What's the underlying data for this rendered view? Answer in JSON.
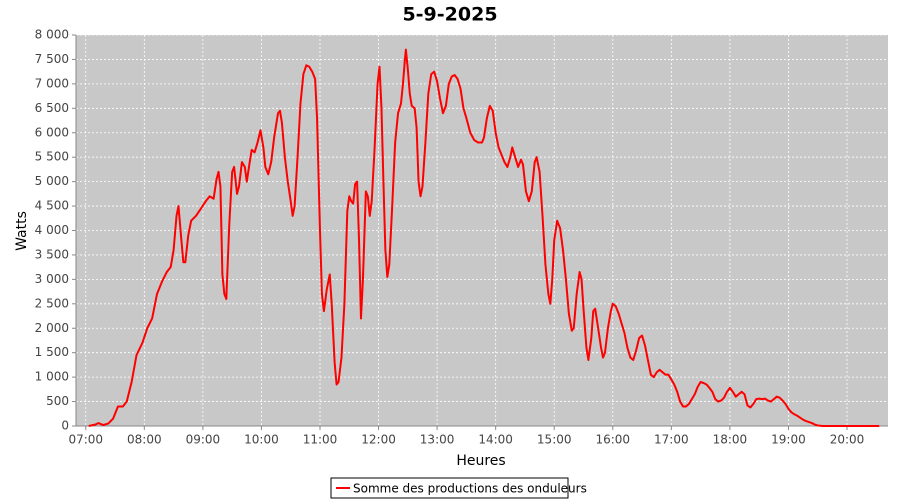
{
  "chart_data": {
    "type": "line",
    "title": "5-9-2025",
    "x_label": "Heures",
    "y_label": "Watts",
    "x": [
      "07:03",
      "07:10",
      "07:13",
      "07:18",
      "07:23",
      "07:28",
      "07:33",
      "07:38",
      "07:42",
      "07:47",
      "07:52",
      "07:58",
      "08:03",
      "08:08",
      "08:13",
      "08:18",
      "08:23",
      "08:27",
      "08:30",
      "08:33",
      "08:35",
      "08:38",
      "08:40",
      "08:42",
      "08:45",
      "08:48",
      "08:53",
      "08:58",
      "09:03",
      "09:07",
      "09:11",
      "09:14",
      "09:16",
      "09:18",
      "09:20",
      "09:22",
      "09:24",
      "09:27",
      "09:30",
      "09:32",
      "09:35",
      "09:37",
      "09:40",
      "09:43",
      "09:45",
      "09:48",
      "09:50",
      "09:53",
      "09:56",
      "09:59",
      "10:02",
      "10:04",
      "10:07",
      "10:10",
      "10:13",
      "10:17",
      "10:19",
      "10:21",
      "10:24",
      "10:27",
      "10:30",
      "10:32",
      "10:34",
      "10:37",
      "10:40",
      "10:43",
      "10:46",
      "10:49",
      "10:52",
      "10:55",
      "10:57",
      "11:00",
      "11:02",
      "11:04",
      "11:07",
      "11:10",
      "11:12",
      "11:15",
      "11:17",
      "11:19",
      "11:22",
      "11:25",
      "11:28",
      "11:30",
      "11:32",
      "11:34",
      "11:36",
      "11:38",
      "11:40",
      "11:42",
      "11:44",
      "11:47",
      "11:49",
      "11:51",
      "11:53",
      "11:56",
      "11:59",
      "12:01",
      "12:03",
      "12:05",
      "12:07",
      "12:09",
      "12:11",
      "12:14",
      "12:17",
      "12:20",
      "12:23",
      "12:25",
      "12:27",
      "12:28",
      "12:30",
      "12:32",
      "12:34",
      "12:37",
      "12:39",
      "12:41",
      "12:43",
      "12:45",
      "12:48",
      "12:51",
      "12:54",
      "12:57",
      "13:00",
      "13:03",
      "13:06",
      "13:09",
      "13:12",
      "13:15",
      "13:18",
      "13:21",
      "13:24",
      "13:27",
      "13:30",
      "13:34",
      "13:38",
      "13:42",
      "13:46",
      "13:48",
      "13:51",
      "13:54",
      "13:57",
      "14:00",
      "14:03",
      "14:06",
      "14:09",
      "14:12",
      "14:15",
      "14:17",
      "14:20",
      "14:23",
      "14:26",
      "14:28",
      "14:31",
      "14:34",
      "14:37",
      "14:40",
      "14:42",
      "14:45",
      "14:48",
      "14:51",
      "14:54",
      "14:56",
      "14:58",
      "15:00",
      "15:03",
      "15:06",
      "15:09",
      "15:12",
      "15:15",
      "15:18",
      "15:20",
      "15:23",
      "15:26",
      "15:28",
      "15:30",
      "15:33",
      "15:35",
      "15:38",
      "15:40",
      "15:42",
      "15:45",
      "15:48",
      "15:50",
      "15:52",
      "15:55",
      "15:58",
      "16:00",
      "16:03",
      "16:06",
      "16:09",
      "16:12",
      "16:15",
      "16:18",
      "16:21",
      "16:24",
      "16:27",
      "16:30",
      "16:33",
      "16:36",
      "16:39",
      "16:42",
      "16:45",
      "16:48",
      "16:51",
      "16:54",
      "16:57",
      "17:00",
      "17:03",
      "17:06",
      "17:09",
      "17:12",
      "17:15",
      "17:18",
      "17:21",
      "17:24",
      "17:27",
      "17:30",
      "17:33",
      "17:36",
      "17:39",
      "17:42",
      "17:45",
      "17:48",
      "17:51",
      "17:54",
      "17:57",
      "18:00",
      "18:03",
      "18:06",
      "18:09",
      "18:12",
      "18:15",
      "18:18",
      "18:21",
      "18:24",
      "18:27",
      "18:30",
      "18:33",
      "18:36",
      "18:39",
      "18:42",
      "18:45",
      "18:48",
      "18:51",
      "18:54",
      "18:57",
      "19:00",
      "19:03",
      "19:06",
      "19:09",
      "19:12",
      "19:15",
      "19:18",
      "19:21",
      "19:24",
      "19:27",
      "19:30",
      "19:35",
      "19:45",
      "19:55",
      "20:05",
      "20:15",
      "20:25",
      "20:33"
    ],
    "series": [
      {
        "name": "Somme des productions des onduleurs",
        "color": "#ff0000",
        "values": [
          0,
          30,
          60,
          20,
          50,
          150,
          400,
          400,
          500,
          900,
          1450,
          1700,
          2000,
          2200,
          2700,
          2950,
          3150,
          3250,
          3600,
          4300,
          4500,
          3800,
          3350,
          3350,
          3900,
          4200,
          4300,
          4450,
          4600,
          4700,
          4650,
          5050,
          5200,
          4900,
          3100,
          2700,
          2600,
          4100,
          5200,
          5300,
          4750,
          4900,
          5400,
          5300,
          5000,
          5400,
          5650,
          5600,
          5800,
          6050,
          5700,
          5300,
          5150,
          5400,
          5900,
          6400,
          6450,
          6200,
          5500,
          5000,
          4600,
          4300,
          4500,
          5500,
          6600,
          7200,
          7380,
          7350,
          7250,
          7100,
          6300,
          4000,
          2700,
          2350,
          2800,
          3100,
          2500,
          1300,
          850,
          900,
          1400,
          2500,
          4400,
          4700,
          4600,
          4550,
          4950,
          5000,
          3800,
          2200,
          3000,
          4800,
          4700,
          4300,
          4600,
          5700,
          7000,
          7350,
          6500,
          5000,
          3600,
          3050,
          3300,
          4500,
          5800,
          6400,
          6600,
          7000,
          7500,
          7700,
          7300,
          6800,
          6550,
          6500,
          6100,
          5000,
          4700,
          4900,
          5800,
          6800,
          7200,
          7250,
          7050,
          6700,
          6400,
          6550,
          7000,
          7150,
          7180,
          7100,
          6900,
          6500,
          6300,
          6000,
          5850,
          5800,
          5800,
          5900,
          6300,
          6550,
          6450,
          6000,
          5700,
          5550,
          5400,
          5300,
          5500,
          5700,
          5500,
          5300,
          5450,
          5350,
          4800,
          4600,
          4800,
          5400,
          5500,
          5200,
          4300,
          3300,
          2700,
          2500,
          3000,
          3800,
          4200,
          4050,
          3600,
          3000,
          2300,
          1950,
          2000,
          2700,
          3150,
          3000,
          2400,
          1600,
          1350,
          1800,
          2350,
          2400,
          2000,
          1600,
          1400,
          1500,
          2000,
          2350,
          2500,
          2450,
          2300,
          2100,
          1900,
          1600,
          1400,
          1350,
          1550,
          1800,
          1850,
          1650,
          1350,
          1050,
          1000,
          1100,
          1150,
          1100,
          1050,
          1050,
          950,
          850,
          700,
          500,
          400,
          400,
          450,
          550,
          650,
          800,
          900,
          880,
          850,
          780,
          700,
          550,
          500,
          520,
          580,
          700,
          780,
          700,
          600,
          650,
          700,
          650,
          420,
          380,
          450,
          550,
          560,
          550,
          560,
          520,
          500,
          550,
          600,
          580,
          520,
          450,
          350,
          280,
          240,
          210,
          170,
          130,
          100,
          80,
          60,
          30,
          10,
          0,
          0,
          0,
          0,
          0,
          0,
          0
        ]
      }
    ],
    "xlim": [
      "06:50",
      "20:42"
    ],
    "xticks": [
      "07:00",
      "08:00",
      "09:00",
      "10:00",
      "11:00",
      "12:00",
      "13:00",
      "14:00",
      "15:00",
      "16:00",
      "17:00",
      "18:00",
      "19:00",
      "20:00"
    ],
    "ylim": [
      0,
      8000
    ],
    "yticks": [
      0,
      500,
      {
        "value": 1000,
        "label": "1 000"
      },
      {
        "value": 1500,
        "label": "1 500"
      },
      {
        "value": 2000,
        "label": "2 000"
      },
      {
        "value": 2500,
        "label": "2 500"
      },
      {
        "value": 3000,
        "label": "3 000"
      },
      {
        "value": 3500,
        "label": "3 500"
      },
      {
        "value": 4000,
        "label": "4 000"
      },
      {
        "value": 4500,
        "label": "4 500"
      },
      {
        "value": 5000,
        "label": "5 000"
      },
      {
        "value": 5500,
        "label": "5 500"
      },
      {
        "value": 6000,
        "label": "6 000"
      },
      {
        "value": 6500,
        "label": "6 500"
      },
      {
        "value": 7000,
        "label": "7 000"
      },
      {
        "value": 7500,
        "label": "7 500"
      },
      {
        "value": 8000,
        "label": "8 000"
      }
    ],
    "grid": true,
    "legend": "bottom"
  }
}
